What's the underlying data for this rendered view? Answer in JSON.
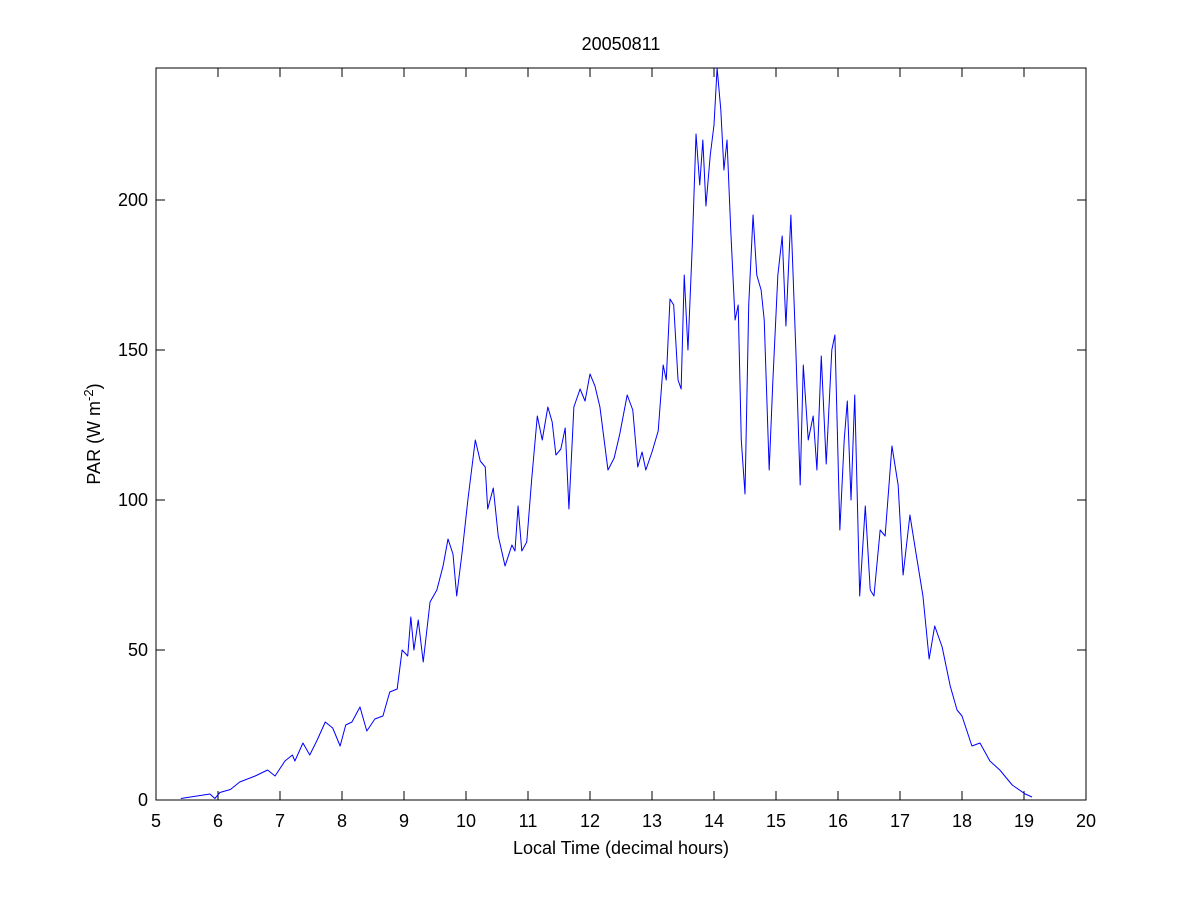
{
  "chart_data": {
    "type": "line",
    "title": "20050811",
    "x_label": "Local Time (decimal hours)",
    "y_label": {
      "text": "PAR (W m",
      "superscript": "-2",
      "suffix": ")"
    },
    "xlim": [
      5,
      20
    ],
    "xticks": [
      5,
      6,
      7,
      8,
      9,
      10,
      11,
      12,
      13,
      14,
      15,
      16,
      17,
      18,
      19,
      20
    ],
    "ylim": [
      0,
      244
    ],
    "yticks": [
      0,
      50,
      100,
      150,
      200
    ],
    "grid": false,
    "x": [
      5.4,
      5.87,
      5.95,
      6.03,
      6.2,
      6.35,
      6.6,
      6.8,
      6.92,
      7.08,
      7.2,
      7.24,
      7.37,
      7.48,
      7.6,
      7.73,
      7.85,
      7.97,
      8.06,
      8.16,
      8.29,
      8.4,
      8.53,
      8.66,
      8.77,
      8.89,
      8.97,
      9.06,
      9.11,
      9.16,
      9.23,
      9.31,
      9.42,
      9.53,
      9.63,
      9.71,
      9.79,
      9.85,
      9.94,
      10.03,
      10.15,
      10.23,
      10.31,
      10.35,
      10.44,
      10.52,
      10.63,
      10.74,
      10.79,
      10.84,
      10.9,
      10.98,
      11.06,
      11.15,
      11.23,
      11.32,
      11.39,
      11.45,
      11.53,
      11.6,
      11.66,
      11.74,
      11.84,
      11.92,
      12.0,
      12.08,
      12.16,
      12.29,
      12.39,
      12.48,
      12.6,
      12.69,
      12.77,
      12.84,
      12.9,
      13.0,
      13.1,
      13.18,
      13.23,
      13.29,
      13.35,
      13.42,
      13.47,
      13.52,
      13.58,
      13.65,
      13.71,
      13.77,
      13.82,
      13.87,
      13.94,
      14.0,
      14.05,
      14.11,
      14.16,
      14.21,
      14.27,
      14.34,
      14.39,
      14.44,
      14.5,
      14.56,
      14.63,
      14.69,
      14.76,
      14.81,
      14.89,
      14.95,
      15.03,
      15.1,
      15.16,
      15.24,
      15.32,
      15.39,
      15.44,
      15.52,
      15.6,
      15.66,
      15.73,
      15.81,
      15.9,
      15.95,
      16.03,
      16.1,
      16.15,
      16.21,
      16.27,
      16.35,
      16.44,
      16.52,
      16.58,
      16.68,
      16.76,
      16.87,
      16.97,
      17.05,
      17.16,
      17.26,
      17.37,
      17.47,
      17.56,
      17.68,
      17.81,
      17.92,
      18.0,
      18.16,
      18.29,
      18.45,
      18.61,
      18.81,
      19.02,
      19.13
    ],
    "series": [
      {
        "color": "#0000ff",
        "values": [
          0.5,
          2,
          0.5,
          2.5,
          3.5,
          6,
          8,
          10,
          8,
          13,
          15,
          13,
          19,
          15,
          20,
          26,
          24,
          18,
          25,
          26,
          31,
          23,
          27,
          28,
          36,
          37,
          50,
          48,
          61,
          50,
          60,
          46,
          66,
          70,
          78,
          87,
          82,
          68,
          83,
          100,
          120,
          113,
          111,
          97,
          104,
          88,
          78,
          85,
          83,
          98,
          83,
          86,
          107,
          128,
          120,
          131,
          126,
          115,
          117,
          124,
          97,
          131,
          137,
          133,
          142,
          138,
          131,
          110,
          114,
          122,
          135,
          130,
          111,
          116,
          110,
          116,
          123,
          145,
          140,
          167,
          165,
          140,
          137,
          175,
          150,
          185,
          222,
          205,
          220,
          198,
          215,
          225,
          244,
          230,
          210,
          220,
          190,
          160,
          165,
          120,
          102,
          165,
          195,
          175,
          170,
          160,
          110,
          140,
          175,
          188,
          158,
          195,
          150,
          105,
          145,
          120,
          128,
          110,
          148,
          112,
          150,
          155,
          90,
          120,
          133,
          100,
          135,
          68,
          98,
          70,
          68,
          90,
          88,
          118,
          105,
          75,
          95,
          82,
          68,
          47,
          58,
          51,
          38,
          30,
          28,
          18,
          19,
          13,
          10,
          5,
          2,
          1
        ]
      }
    ]
  }
}
